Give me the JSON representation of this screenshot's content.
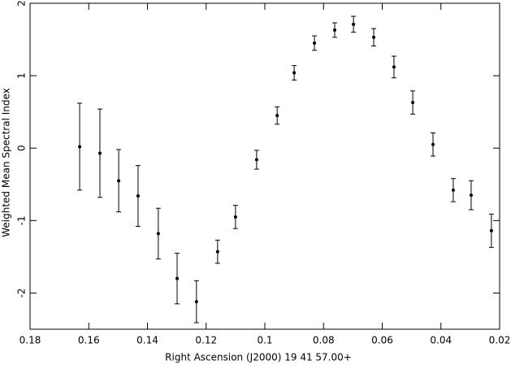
{
  "chart_data": {
    "type": "errorbar",
    "x_label": "Right Ascension (J2000) 19 41 57.00+",
    "y_label": "Weighted Mean Spectral Index",
    "xlim": [
      0.18,
      0.02
    ],
    "xticks": [
      0.18,
      0.16,
      0.14,
      0.12,
      0.1,
      0.08,
      0.06,
      0.04,
      0.02
    ],
    "ylim": [
      -2.5,
      2
    ],
    "yticks": [
      -2,
      -1,
      0,
      1,
      2
    ],
    "color": "#000000",
    "x": [
      0.1631,
      0.1562,
      0.1498,
      0.1432,
      0.1363,
      0.1299,
      0.1233,
      0.1161,
      0.11,
      0.1028,
      0.0958,
      0.09,
      0.0831,
      0.0762,
      0.0698,
      0.0629,
      0.056,
      0.0496,
      0.0427,
      0.0358,
      0.0297,
      0.0228
    ],
    "values": [
      0.02,
      -0.07,
      -0.45,
      -0.66,
      -1.18,
      -1.8,
      -2.12,
      -1.43,
      -0.95,
      -0.16,
      0.45,
      1.04,
      1.45,
      1.63,
      1.71,
      1.53,
      1.12,
      0.63,
      0.05,
      -0.58,
      -0.65,
      -1.14
    ],
    "errors": [
      0.6,
      0.61,
      0.43,
      0.42,
      0.35,
      0.35,
      0.29,
      0.16,
      0.16,
      0.13,
      0.12,
      0.1,
      0.1,
      0.1,
      0.11,
      0.12,
      0.15,
      0.16,
      0.16,
      0.16,
      0.2,
      0.23
    ]
  }
}
